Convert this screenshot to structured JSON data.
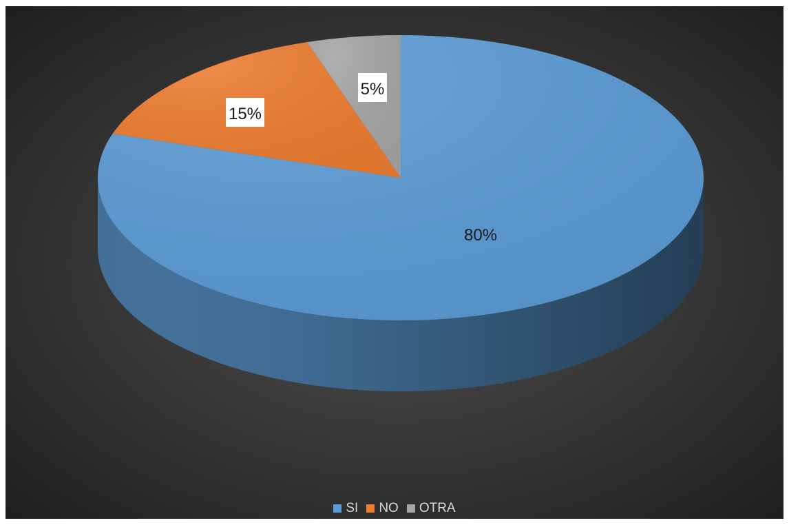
{
  "chart_data": {
    "type": "pie",
    "style": "3d",
    "categories": [
      "SI",
      "NO",
      "OTRA"
    ],
    "values": [
      80,
      15,
      5
    ],
    "data_labels": [
      "80%",
      "15%",
      "5%"
    ],
    "colors": [
      "#5b9bd5",
      "#ed7d31",
      "#a5a5a5"
    ],
    "legend_position": "bottom",
    "title": ""
  },
  "background": {
    "inner": "#505050",
    "outer": "#1e1e1e"
  }
}
